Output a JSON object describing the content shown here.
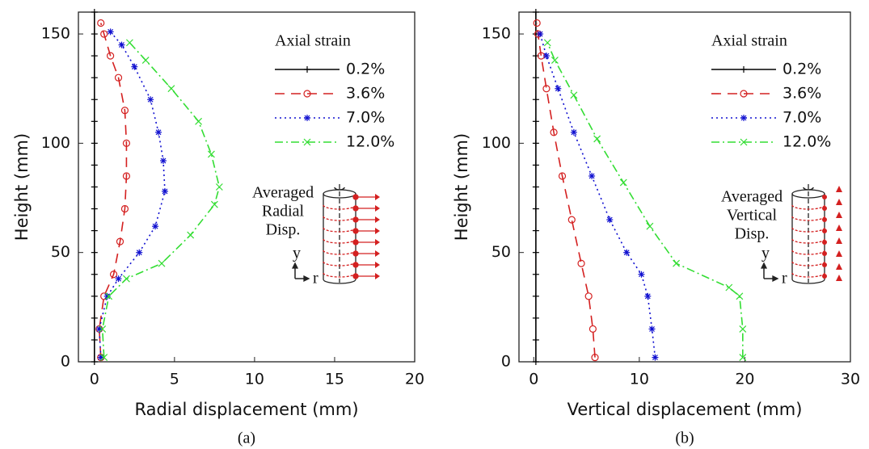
{
  "chart_data": [
    {
      "type": "line",
      "xlabel": "Radial displacement (mm)",
      "ylabel": "Height (mm)",
      "caption": "(a)",
      "xlim": [
        -1,
        20
      ],
      "ylim": [
        0,
        160
      ],
      "xticks": [
        0,
        5,
        10,
        15,
        20
      ],
      "yticks": [
        0,
        50,
        100,
        150
      ],
      "legend_title": "Axial strain",
      "legend": "upper right",
      "annotations": [
        "Averaged",
        "Radial",
        "Disp."
      ],
      "inset_axes": [
        "y",
        "r"
      ],
      "series": [
        {
          "name": "0.2%",
          "color": "#000000",
          "dash": "solid",
          "marker": "+",
          "x": [
            0,
            0,
            0,
            0,
            0,
            0,
            0,
            0,
            0,
            0,
            0,
            0,
            0,
            0,
            0,
            0,
            0
          ],
          "values": [
            0,
            10,
            20,
            30,
            40,
            50,
            60,
            70,
            80,
            90,
            100,
            110,
            120,
            130,
            140,
            150,
            160
          ]
        },
        {
          "name": "3.6%",
          "color": "#d42020",
          "dash": "dashed",
          "marker": "o",
          "x": [
            0.4,
            0.3,
            0.6,
            1.2,
            1.6,
            1.9,
            2.0,
            2.0,
            1.9,
            1.5,
            1.0,
            0.6,
            0.4
          ],
          "values": [
            2,
            15,
            30,
            40,
            55,
            70,
            85,
            100,
            115,
            130,
            140,
            150,
            155
          ]
        },
        {
          "name": "7.0%",
          "color": "#1010d0",
          "dash": "dotted",
          "marker": "*",
          "x": [
            0.4,
            0.3,
            0.8,
            1.5,
            2.8,
            3.8,
            4.4,
            4.3,
            4.0,
            3.5,
            2.5,
            1.7,
            1.0
          ],
          "values": [
            2,
            15,
            30,
            38,
            50,
            62,
            78,
            92,
            105,
            120,
            135,
            145,
            151
          ]
        },
        {
          "name": "12.0%",
          "color": "#33dd33",
          "dash": "dashdot",
          "marker": "x",
          "x": [
            0.6,
            0.5,
            0.9,
            2.0,
            4.2,
            6.0,
            7.5,
            7.8,
            7.3,
            6.5,
            4.8,
            3.2,
            2.2
          ],
          "values": [
            2,
            15,
            30,
            38,
            45,
            58,
            72,
            80,
            95,
            110,
            125,
            138,
            146
          ]
        }
      ]
    },
    {
      "type": "line",
      "xlabel": "Vertical displacement (mm)",
      "ylabel": "Height (mm)",
      "caption": "(b)",
      "xlim": [
        -1.4,
        30
      ],
      "ylim": [
        0,
        160
      ],
      "xticks": [
        0,
        10,
        20,
        30
      ],
      "yticks": [
        0,
        50,
        100,
        150
      ],
      "legend_title": "Axial strain",
      "legend": "upper right",
      "annotations": [
        "Averaged",
        "Vertical",
        "Disp."
      ],
      "inset_axes": [
        "y",
        "r"
      ],
      "series": [
        {
          "name": "0.2%",
          "color": "#000000",
          "dash": "solid",
          "marker": "+",
          "x": [
            0.2,
            0.2,
            0.2,
            0.2,
            0.2,
            0.2,
            0.2,
            0.2,
            0.2,
            0.2,
            0.2,
            0.2,
            0.2,
            0.2,
            0.2,
            0.2,
            0.2
          ],
          "values": [
            0,
            10,
            20,
            30,
            40,
            50,
            60,
            70,
            80,
            90,
            100,
            110,
            120,
            130,
            140,
            150,
            160
          ]
        },
        {
          "name": "3.6%",
          "color": "#d42020",
          "dash": "dashed",
          "marker": "o",
          "x": [
            5.8,
            5.6,
            5.2,
            4.5,
            3.6,
            2.7,
            1.9,
            1.2,
            0.7,
            0.4,
            0.3
          ],
          "values": [
            2,
            15,
            30,
            45,
            65,
            85,
            105,
            125,
            140,
            150,
            155
          ]
        },
        {
          "name": "7.0%",
          "color": "#1010d0",
          "dash": "dotted",
          "marker": "*",
          "x": [
            11.5,
            11.2,
            10.8,
            10.2,
            8.8,
            7.2,
            5.5,
            3.8,
            2.3,
            1.2,
            0.6
          ],
          "values": [
            2,
            15,
            30,
            40,
            50,
            65,
            85,
            105,
            125,
            140,
            150
          ]
        },
        {
          "name": "12.0%",
          "color": "#33dd33",
          "dash": "dashdot",
          "marker": "x",
          "x": [
            19.8,
            19.8,
            19.5,
            18.5,
            13.5,
            11.0,
            8.5,
            6.0,
            3.8,
            2.0,
            1.3
          ],
          "values": [
            2,
            15,
            30,
            34,
            45,
            62,
            82,
            102,
            122,
            138,
            146
          ]
        }
      ]
    }
  ]
}
